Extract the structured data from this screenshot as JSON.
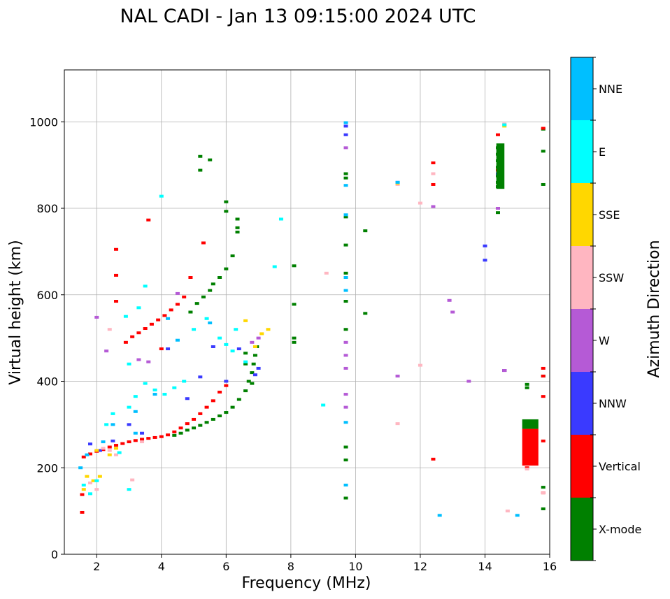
{
  "chart_data": {
    "type": "scatter",
    "title": "NAL CADI - Jan 13 09:15:00 2024 UTC",
    "xlabel": "Frequency (MHz)",
    "ylabel": "Virtual height (km)",
    "xlim": [
      1,
      16
    ],
    "ylim": [
      0,
      1120
    ],
    "xticks": [
      "2",
      "4",
      "6",
      "8",
      "10",
      "12",
      "14",
      "16"
    ],
    "yticks": [
      "0",
      "200",
      "400",
      "600",
      "800",
      "1000"
    ],
    "grid": true,
    "colorbar": {
      "label": "Azimuth Direction",
      "categories": [
        {
          "name": "X-mode",
          "color": "#008000"
        },
        {
          "name": "Vertical",
          "color": "#ff0000"
        },
        {
          "name": "NNW",
          "color": "#3a3aff"
        },
        {
          "name": "W",
          "color": "#b55ad6"
        },
        {
          "name": "SSW",
          "color": "#ffb6c1"
        },
        {
          "name": "SSE",
          "color": "#ffd700"
        },
        {
          "name": "E",
          "color": "#00ffff"
        },
        {
          "name": "NNE",
          "color": "#00bfff"
        }
      ]
    },
    "series": [
      {
        "name": "X-mode",
        "points": [
          [
            4.4,
            275
          ],
          [
            4.6,
            280
          ],
          [
            4.8,
            287
          ],
          [
            5.0,
            292
          ],
          [
            5.2,
            298
          ],
          [
            5.4,
            305
          ],
          [
            5.6,
            312
          ],
          [
            5.8,
            320
          ],
          [
            6.0,
            328
          ],
          [
            6.2,
            340
          ],
          [
            6.4,
            358
          ],
          [
            6.6,
            378
          ],
          [
            6.7,
            400
          ],
          [
            6.8,
            420
          ],
          [
            6.85,
            440
          ],
          [
            6.9,
            460
          ],
          [
            6.95,
            480
          ],
          [
            6.6,
            440
          ],
          [
            6.6,
            465
          ],
          [
            6.8,
            395
          ],
          [
            4.9,
            560
          ],
          [
            5.1,
            580
          ],
          [
            5.3,
            595
          ],
          [
            5.5,
            610
          ],
          [
            5.6,
            625
          ],
          [
            5.8,
            640
          ],
          [
            6.0,
            660
          ],
          [
            6.2,
            690
          ],
          [
            6.35,
            745
          ],
          [
            6.35,
            755
          ],
          [
            6.35,
            775
          ],
          [
            6.0,
            793
          ],
          [
            6.0,
            815
          ],
          [
            5.2,
            920
          ],
          [
            5.5,
            912
          ],
          [
            5.2,
            888
          ],
          [
            8.1,
            667
          ],
          [
            8.1,
            578
          ],
          [
            8.1,
            500
          ],
          [
            8.1,
            490
          ],
          [
            9.7,
            130
          ],
          [
            9.7,
            218
          ],
          [
            9.7,
            248
          ],
          [
            9.7,
            520
          ],
          [
            9.7,
            585
          ],
          [
            9.7,
            650
          ],
          [
            9.7,
            715
          ],
          [
            9.7,
            780
          ],
          [
            9.7,
            870
          ],
          [
            9.7,
            880
          ],
          [
            10.3,
            748
          ],
          [
            10.3,
            557
          ],
          [
            14.4,
            850
          ],
          [
            14.4,
            860
          ],
          [
            14.4,
            875
          ],
          [
            14.4,
            895
          ],
          [
            14.4,
            910
          ],
          [
            14.4,
            925
          ],
          [
            14.4,
            940
          ],
          [
            14.4,
            790
          ],
          [
            15.3,
            215
          ],
          [
            15.3,
            230
          ],
          [
            15.3,
            255
          ],
          [
            15.3,
            280
          ],
          [
            15.3,
            305
          ],
          [
            15.3,
            385
          ],
          [
            15.3,
            393
          ],
          [
            15.8,
            983
          ],
          [
            15.8,
            855
          ],
          [
            15.8,
            932
          ],
          [
            15.8,
            155
          ],
          [
            15.8,
            105
          ],
          [
            15.8,
            412
          ]
        ]
      },
      {
        "name": "Vertical",
        "points": [
          [
            1.6,
            225
          ],
          [
            1.8,
            232
          ],
          [
            2.0,
            238
          ],
          [
            2.2,
            242
          ],
          [
            2.4,
            248
          ],
          [
            2.6,
            252
          ],
          [
            2.8,
            256
          ],
          [
            3.0,
            260
          ],
          [
            3.2,
            263
          ],
          [
            3.4,
            266
          ],
          [
            3.6,
            268
          ],
          [
            3.8,
            270
          ],
          [
            4.0,
            272
          ],
          [
            4.2,
            276
          ],
          [
            4.4,
            283
          ],
          [
            4.6,
            292
          ],
          [
            4.8,
            302
          ],
          [
            5.0,
            312
          ],
          [
            5.2,
            325
          ],
          [
            5.4,
            340
          ],
          [
            5.6,
            355
          ],
          [
            5.8,
            375
          ],
          [
            6.0,
            390
          ],
          [
            2.9,
            490
          ],
          [
            3.1,
            503
          ],
          [
            3.3,
            512
          ],
          [
            3.5,
            522
          ],
          [
            3.7,
            532
          ],
          [
            3.9,
            542
          ],
          [
            4.1,
            552
          ],
          [
            4.3,
            565
          ],
          [
            4.5,
            578
          ],
          [
            4.7,
            595
          ],
          [
            4.9,
            640
          ],
          [
            5.3,
            720
          ],
          [
            3.6,
            773
          ],
          [
            4.0,
            475
          ],
          [
            2.6,
            585
          ],
          [
            2.6,
            645
          ],
          [
            2.6,
            705
          ],
          [
            1.55,
            138
          ],
          [
            1.55,
            97
          ],
          [
            12.4,
            220
          ],
          [
            12.4,
            855
          ],
          [
            12.4,
            905
          ],
          [
            14.4,
            970
          ],
          [
            14.4,
            888
          ],
          [
            14.4,
            800
          ],
          [
            14.6,
            425
          ],
          [
            15.3,
            200
          ],
          [
            15.3,
            215
          ],
          [
            15.3,
            245
          ],
          [
            15.3,
            270
          ],
          [
            15.3,
            285
          ],
          [
            15.8,
            430
          ],
          [
            15.8,
            412
          ],
          [
            15.8,
            365
          ],
          [
            15.8,
            262
          ],
          [
            15.8,
            142
          ],
          [
            15.8,
            985
          ]
        ]
      },
      {
        "name": "NNW",
        "points": [
          [
            1.8,
            255
          ],
          [
            2.1,
            240
          ],
          [
            3.0,
            300
          ],
          [
            3.4,
            280
          ],
          [
            4.2,
            475
          ],
          [
            4.8,
            360
          ],
          [
            5.2,
            410
          ],
          [
            5.6,
            480
          ],
          [
            6.0,
            400
          ],
          [
            6.4,
            475
          ],
          [
            6.9,
            415
          ],
          [
            7.0,
            430
          ],
          [
            2.5,
            262
          ],
          [
            9.7,
            970
          ],
          [
            9.7,
            990
          ],
          [
            11.3,
            860
          ],
          [
            14.0,
            713
          ],
          [
            14.0,
            680
          ],
          [
            14.6,
            425
          ],
          [
            14.4,
            880
          ]
        ]
      },
      {
        "name": "W",
        "points": [
          [
            2.3,
            470
          ],
          [
            3.3,
            450
          ],
          [
            3.6,
            445
          ],
          [
            2.0,
            548
          ],
          [
            4.5,
            603
          ],
          [
            6.8,
            490
          ],
          [
            7.0,
            500
          ],
          [
            9.7,
            340
          ],
          [
            9.7,
            370
          ],
          [
            9.7,
            430
          ],
          [
            9.7,
            460
          ],
          [
            9.7,
            490
          ],
          [
            9.7,
            940
          ],
          [
            13.0,
            560
          ],
          [
            13.5,
            400
          ],
          [
            12.9,
            587
          ],
          [
            12.4,
            804
          ],
          [
            11.3,
            412
          ],
          [
            14.6,
            425
          ],
          [
            14.4,
            800
          ]
        ]
      },
      {
        "name": "SSW",
        "points": [
          [
            1.8,
            165
          ],
          [
            2.0,
            150
          ],
          [
            2.2,
            245
          ],
          [
            2.4,
            240
          ],
          [
            2.6,
            230
          ],
          [
            3.1,
            172
          ],
          [
            3.4,
            260
          ],
          [
            2.4,
            520
          ],
          [
            11.3,
            302
          ],
          [
            12.0,
            437
          ],
          [
            12.0,
            812
          ],
          [
            12.4,
            880
          ],
          [
            9.1,
            650
          ],
          [
            14.7,
            100
          ],
          [
            14.6,
            995
          ],
          [
            15.3,
            197
          ],
          [
            15.8,
            142
          ],
          [
            11.3,
            855
          ]
        ]
      },
      {
        "name": "SSE",
        "points": [
          [
            1.7,
            180
          ],
          [
            1.9,
            170
          ],
          [
            2.1,
            180
          ],
          [
            1.6,
            150
          ],
          [
            2.4,
            230
          ],
          [
            2.6,
            245
          ],
          [
            2.0,
            240
          ],
          [
            6.6,
            540
          ],
          [
            7.1,
            510
          ],
          [
            7.3,
            520
          ],
          [
            6.9,
            480
          ],
          [
            14.6,
            990
          ],
          [
            11.3,
            858
          ]
        ]
      },
      {
        "name": "E",
        "points": [
          [
            1.6,
            160
          ],
          [
            1.8,
            140
          ],
          [
            2.0,
            170
          ],
          [
            2.3,
            300
          ],
          [
            2.5,
            325
          ],
          [
            2.7,
            235
          ],
          [
            3.0,
            340
          ],
          [
            3.2,
            365
          ],
          [
            3.5,
            395
          ],
          [
            3.8,
            380
          ],
          [
            4.1,
            370
          ],
          [
            4.4,
            385
          ],
          [
            4.7,
            400
          ],
          [
            3.0,
            150
          ],
          [
            3.0,
            440
          ],
          [
            4.0,
            828
          ],
          [
            3.5,
            620
          ],
          [
            5.0,
            520
          ],
          [
            5.4,
            545
          ],
          [
            5.8,
            500
          ],
          [
            6.2,
            470
          ],
          [
            6.6,
            445
          ],
          [
            2.9,
            550
          ],
          [
            3.3,
            570
          ],
          [
            9.0,
            345
          ],
          [
            7.5,
            665
          ],
          [
            7.7,
            775
          ],
          [
            14.6,
            993
          ],
          [
            6.0,
            485
          ],
          [
            6.3,
            520
          ]
        ]
      },
      {
        "name": "NNE",
        "points": [
          [
            1.5,
            200
          ],
          [
            1.7,
            230
          ],
          [
            2.2,
            260
          ],
          [
            2.5,
            300
          ],
          [
            3.2,
            280
          ],
          [
            3.8,
            370
          ],
          [
            4.2,
            545
          ],
          [
            4.5,
            495
          ],
          [
            5.5,
            535
          ],
          [
            9.7,
            160
          ],
          [
            9.7,
            305
          ],
          [
            9.7,
            640
          ],
          [
            9.7,
            610
          ],
          [
            9.7,
            785
          ],
          [
            9.7,
            998
          ],
          [
            9.7,
            853
          ],
          [
            11.3,
            860
          ],
          [
            12.6,
            90
          ],
          [
            15.0,
            90
          ],
          [
            3.2,
            330
          ]
        ]
      }
    ],
    "bars": [
      {
        "name": "X-mode",
        "x0": 14.35,
        "x1": 14.6,
        "y0": 845,
        "y1": 950
      },
      {
        "name": "Vertical",
        "x0": 15.15,
        "x1": 15.65,
        "y0": 205,
        "y1": 290
      },
      {
        "name": "X-mode",
        "x0": 15.15,
        "x1": 15.65,
        "y0": 290,
        "y1": 312
      }
    ]
  }
}
